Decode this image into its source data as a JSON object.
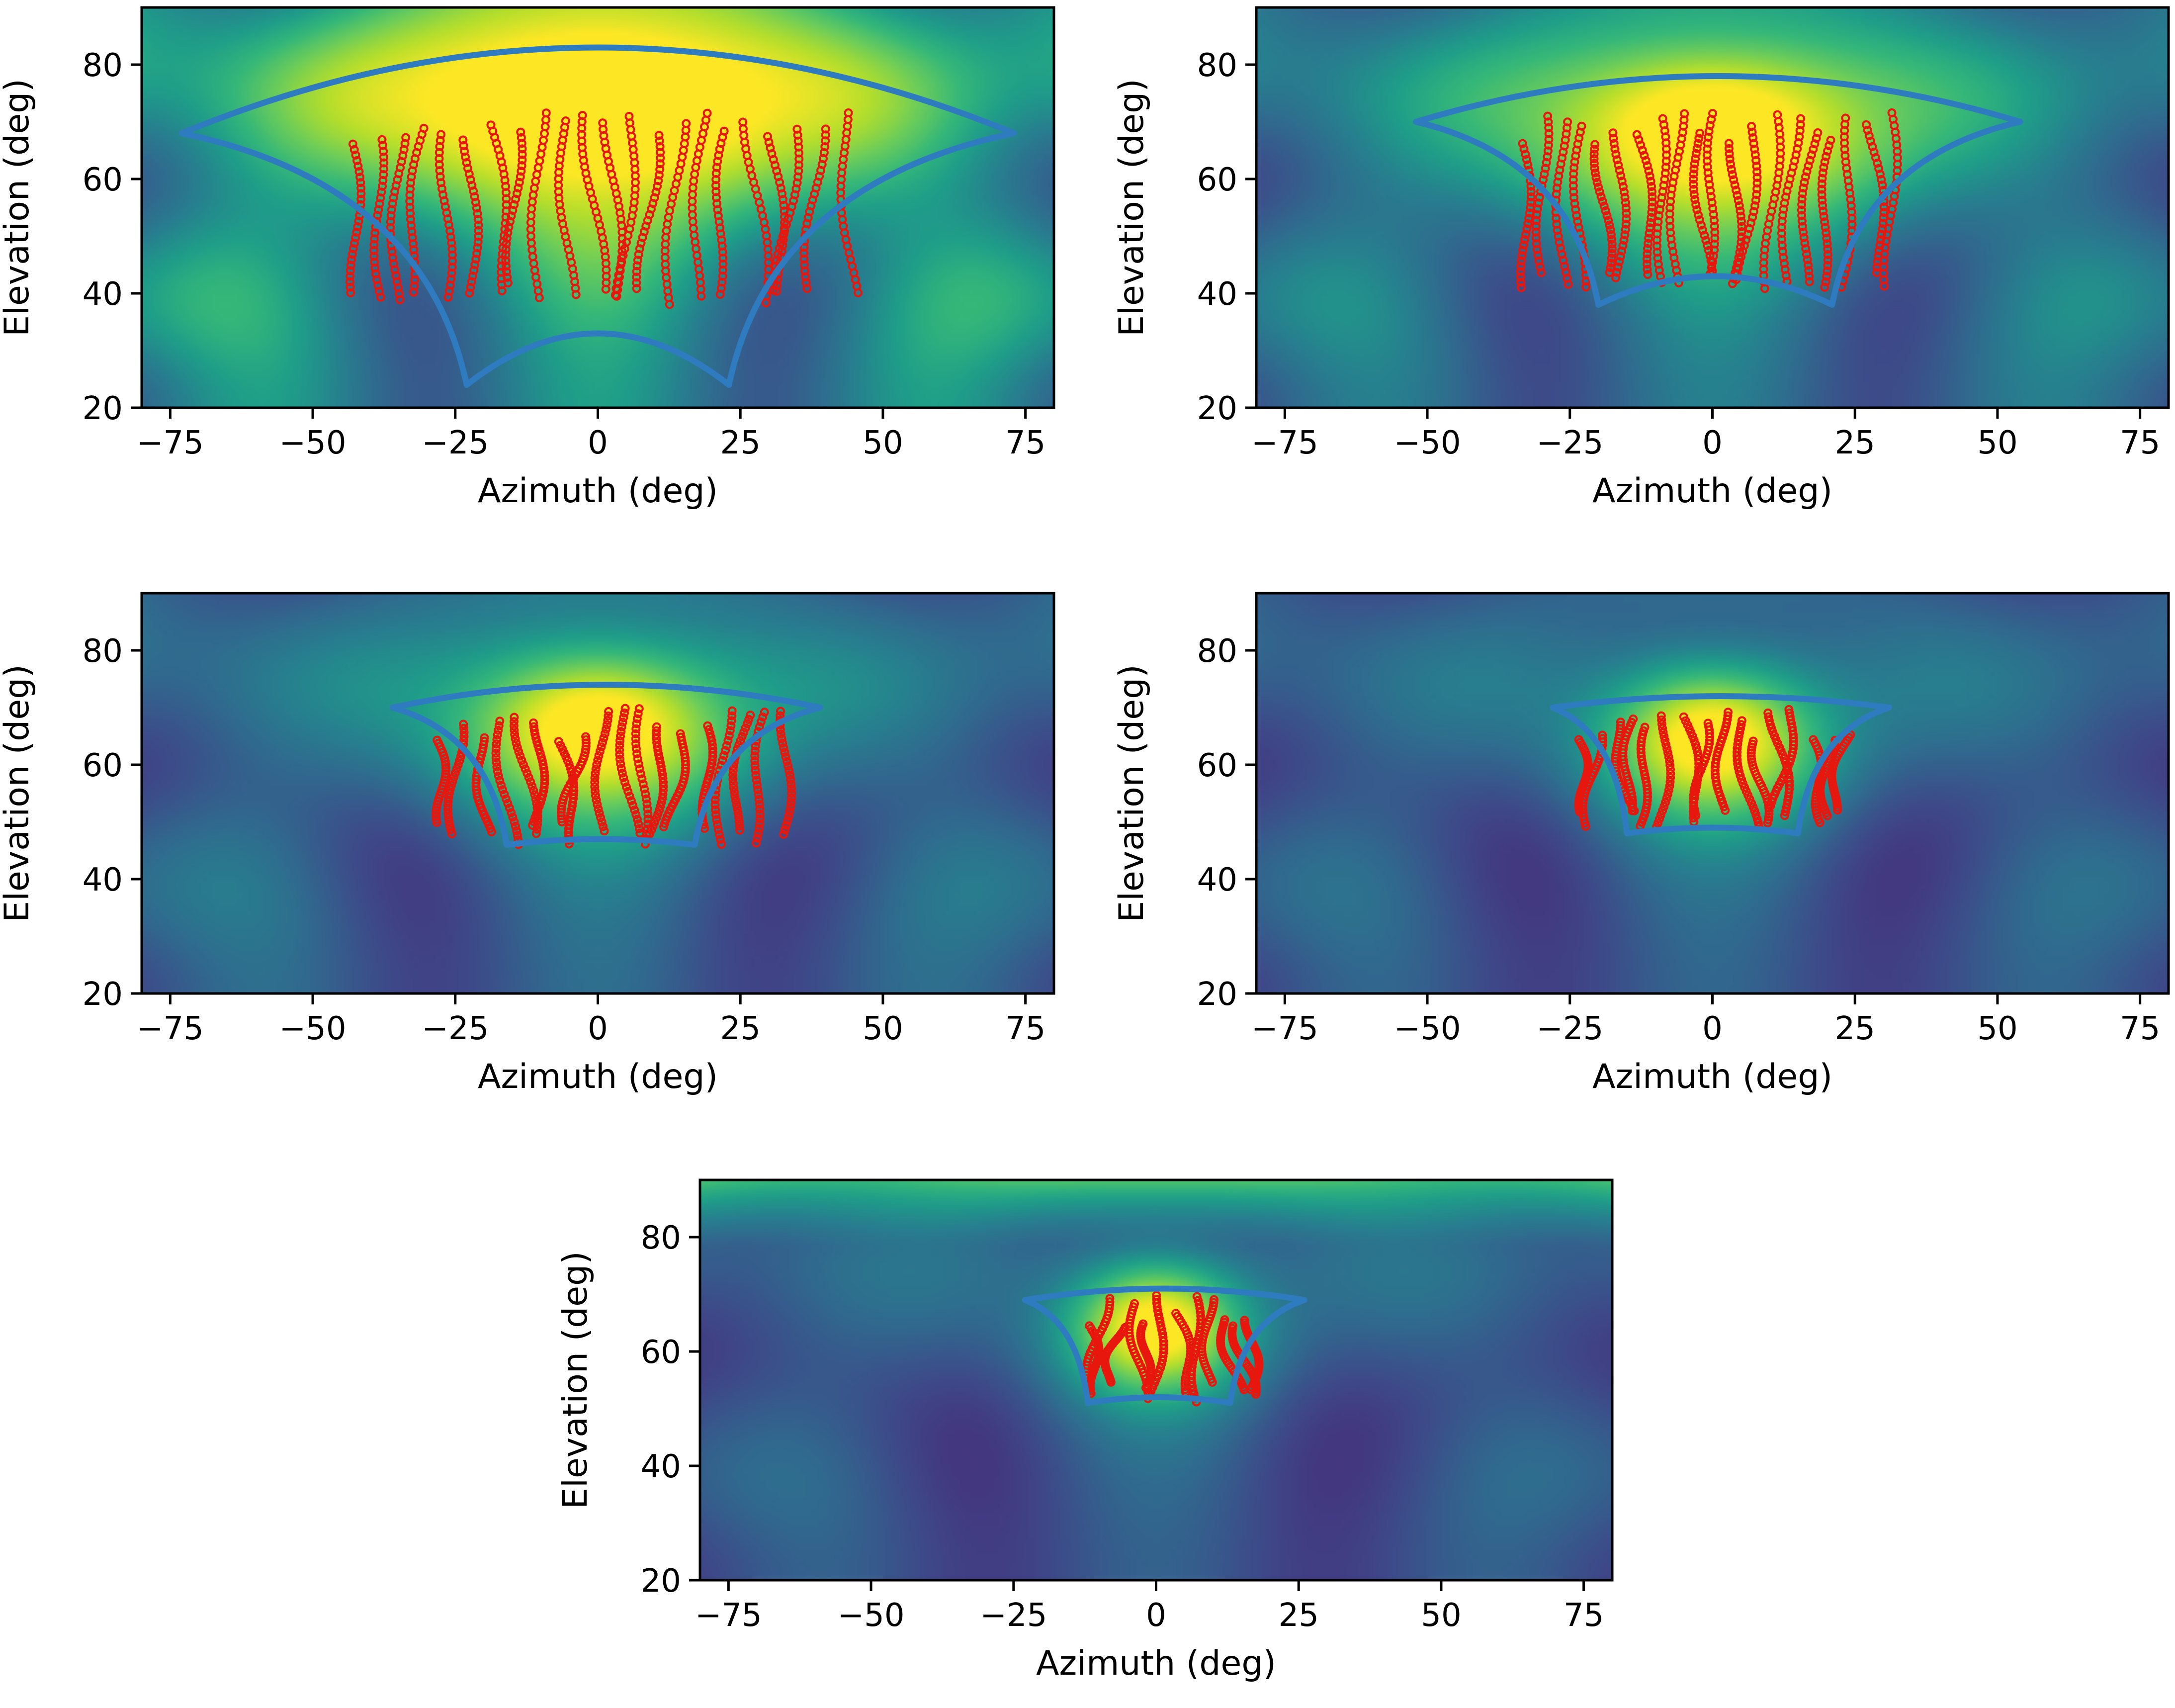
{
  "figure": {
    "layout": "2-2-1 grid of beam-pattern heatmaps"
  },
  "colors": {
    "colormap": "viridis",
    "region_outline": "#2f7bbf",
    "track_points": "#e8170d",
    "axes": "#000000"
  },
  "chart_data": [
    {
      "type": "heatmap",
      "panel": "top-left",
      "title": "",
      "xlabel": "Azimuth (deg)",
      "ylabel": "Elevation (deg)",
      "xlim": [
        -80,
        80
      ],
      "ylim": [
        20,
        90
      ],
      "xticks": [
        -75,
        -50,
        -25,
        0,
        25,
        50,
        75
      ],
      "xtick_labels": [
        "−75",
        "−50",
        "−25",
        "0",
        "25",
        "50",
        "75"
      ],
      "yticks": [
        20,
        40,
        60,
        80
      ],
      "ytick_labels": [
        "20",
        "40",
        "60",
        "80"
      ],
      "beam": {
        "peak_azimuth": 0,
        "peak_elevation": 73,
        "width_az": 48,
        "width_el": 24,
        "sidelobe_scale": 0.45,
        "background_level": 0.5
      },
      "coverage_region": {
        "az_top": [
          -73,
          73
        ],
        "el_top_edge": 68,
        "el_top_center": 83,
        "az_bottom": [
          -23,
          23
        ],
        "el_bottom_edge": 24,
        "el_bottom_center": 33
      },
      "tracks": {
        "az_range": [
          -45,
          45
        ],
        "el_range": [
          38,
          72
        ],
        "count": 22
      }
    },
    {
      "type": "heatmap",
      "panel": "top-right",
      "title": "",
      "xlabel": "Azimuth (deg)",
      "ylabel": "Elevation (deg)",
      "xlim": [
        -80,
        80
      ],
      "ylim": [
        20,
        90
      ],
      "xticks": [
        -75,
        -50,
        -25,
        0,
        25,
        50,
        75
      ],
      "xtick_labels": [
        "−75",
        "−50",
        "−25",
        "0",
        "25",
        "50",
        "75"
      ],
      "yticks": [
        20,
        40,
        60,
        80
      ],
      "ytick_labels": [
        "20",
        "40",
        "60",
        "80"
      ],
      "beam": {
        "peak_azimuth": 0,
        "peak_elevation": 68,
        "width_az": 36,
        "width_el": 20,
        "sidelobe_scale": 0.32,
        "background_level": 0.38
      },
      "coverage_region": {
        "az_top": [
          -52,
          54
        ],
        "el_top_edge": 70,
        "el_top_center": 78,
        "az_bottom": [
          -20,
          21
        ],
        "el_bottom_edge": 38,
        "el_bottom_center": 43
      },
      "tracks": {
        "az_range": [
          -35,
          33
        ],
        "el_range": [
          40,
          72
        ],
        "count": 20
      }
    },
    {
      "type": "heatmap",
      "panel": "middle-left",
      "title": "",
      "xlabel": "Azimuth (deg)",
      "ylabel": "Elevation (deg)",
      "xlim": [
        -80,
        80
      ],
      "ylim": [
        20,
        90
      ],
      "xticks": [
        -75,
        -50,
        -25,
        0,
        25,
        50,
        75
      ],
      "xtick_labels": [
        "−75",
        "−50",
        "−25",
        "0",
        "25",
        "50",
        "75"
      ],
      "yticks": [
        20,
        40,
        60,
        80
      ],
      "ytick_labels": [
        "20",
        "40",
        "60",
        "80"
      ],
      "beam": {
        "peak_azimuth": 0,
        "peak_elevation": 66,
        "width_az": 27,
        "width_el": 17,
        "sidelobe_scale": 0.25,
        "background_level": 0.3
      },
      "coverage_region": {
        "az_top": [
          -36,
          39
        ],
        "el_top_edge": 70,
        "el_top_center": 74,
        "az_bottom": [
          -16,
          17
        ],
        "el_bottom_edge": 46,
        "el_bottom_center": 47
      },
      "tracks": {
        "az_range": [
          -30,
          35
        ],
        "el_range": [
          46,
          70
        ],
        "count": 18
      }
    },
    {
      "type": "heatmap",
      "panel": "middle-right",
      "title": "",
      "xlabel": "Azimuth (deg)",
      "ylabel": "Elevation (deg)",
      "xlim": [
        -80,
        80
      ],
      "ylim": [
        20,
        90
      ],
      "xticks": [
        -75,
        -50,
        -25,
        0,
        25,
        50,
        75
      ],
      "xtick_labels": [
        "−75",
        "−50",
        "−25",
        "0",
        "25",
        "50",
        "75"
      ],
      "yticks": [
        20,
        40,
        60,
        80
      ],
      "ytick_labels": [
        "20",
        "40",
        "60",
        "80"
      ],
      "beam": {
        "peak_azimuth": 0,
        "peak_elevation": 64,
        "width_az": 21,
        "width_el": 15,
        "sidelobe_scale": 0.22,
        "background_level": 0.26
      },
      "coverage_region": {
        "az_top": [
          -28,
          31
        ],
        "el_top_edge": 70,
        "el_top_center": 72,
        "az_bottom": [
          -15,
          15
        ],
        "el_bottom_edge": 48,
        "el_bottom_center": 49
      },
      "tracks": {
        "az_range": [
          -25,
          25
        ],
        "el_range": [
          49,
          70
        ],
        "count": 16
      }
    },
    {
      "type": "heatmap",
      "panel": "bottom-center",
      "title": "",
      "xlabel": "Azimuth (deg)",
      "ylabel": "Elevation (deg)",
      "xlim": [
        -80,
        80
      ],
      "ylim": [
        20,
        90
      ],
      "xticks": [
        -75,
        -50,
        -25,
        0,
        25,
        50,
        75
      ],
      "xtick_labels": [
        "−75",
        "−50",
        "−25",
        "0",
        "25",
        "50",
        "75"
      ],
      "yticks": [
        20,
        40,
        60,
        80
      ],
      "ytick_labels": [
        "20",
        "40",
        "60",
        "80"
      ],
      "beam": {
        "peak_azimuth": 0,
        "peak_elevation": 64,
        "width_az": 17,
        "width_el": 13,
        "sidelobe_scale": 0.2,
        "background_level": 0.25,
        "top_band": 0.42
      },
      "coverage_region": {
        "az_top": [
          -23,
          26
        ],
        "el_top_edge": 69,
        "el_top_center": 71,
        "az_bottom": [
          -12,
          13
        ],
        "el_bottom_edge": 51,
        "el_bottom_center": 52
      },
      "tracks": {
        "az_range": [
          -13,
          18
        ],
        "el_range": [
          51,
          70
        ],
        "count": 12
      }
    }
  ]
}
